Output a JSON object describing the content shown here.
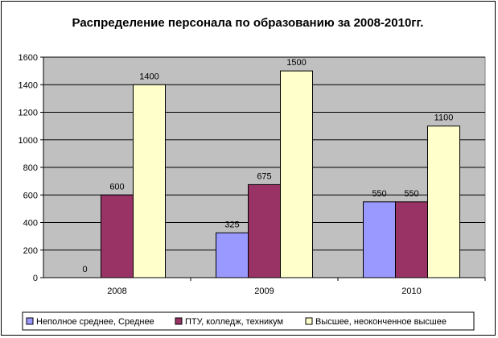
{
  "chart_data": {
    "type": "bar",
    "title": "Распределение персонала по образованию за 2008-2010гг.",
    "categories": [
      "2008",
      "2009",
      "2010"
    ],
    "series": [
      {
        "name": "Неполное среднее, Среднее",
        "values": [
          0,
          325,
          550
        ],
        "color": "#9999FF"
      },
      {
        "name": "ПТУ, колледж, техникум",
        "values": [
          600,
          675,
          550
        ],
        "color": "#993366"
      },
      {
        "name": "Высшее, неоконченное высшее",
        "values": [
          1400,
          1500,
          1100
        ],
        "color": "#FFFFCC"
      }
    ],
    "ylim": [
      0,
      1600
    ],
    "yticks": [
      "0",
      "200",
      "400",
      "600",
      "800",
      "1000",
      "1200",
      "1400",
      "1600"
    ],
    "grid": true,
    "plot_background": "#C0C0C0",
    "legend_position": "bottom",
    "xlabel": "",
    "ylabel": ""
  }
}
